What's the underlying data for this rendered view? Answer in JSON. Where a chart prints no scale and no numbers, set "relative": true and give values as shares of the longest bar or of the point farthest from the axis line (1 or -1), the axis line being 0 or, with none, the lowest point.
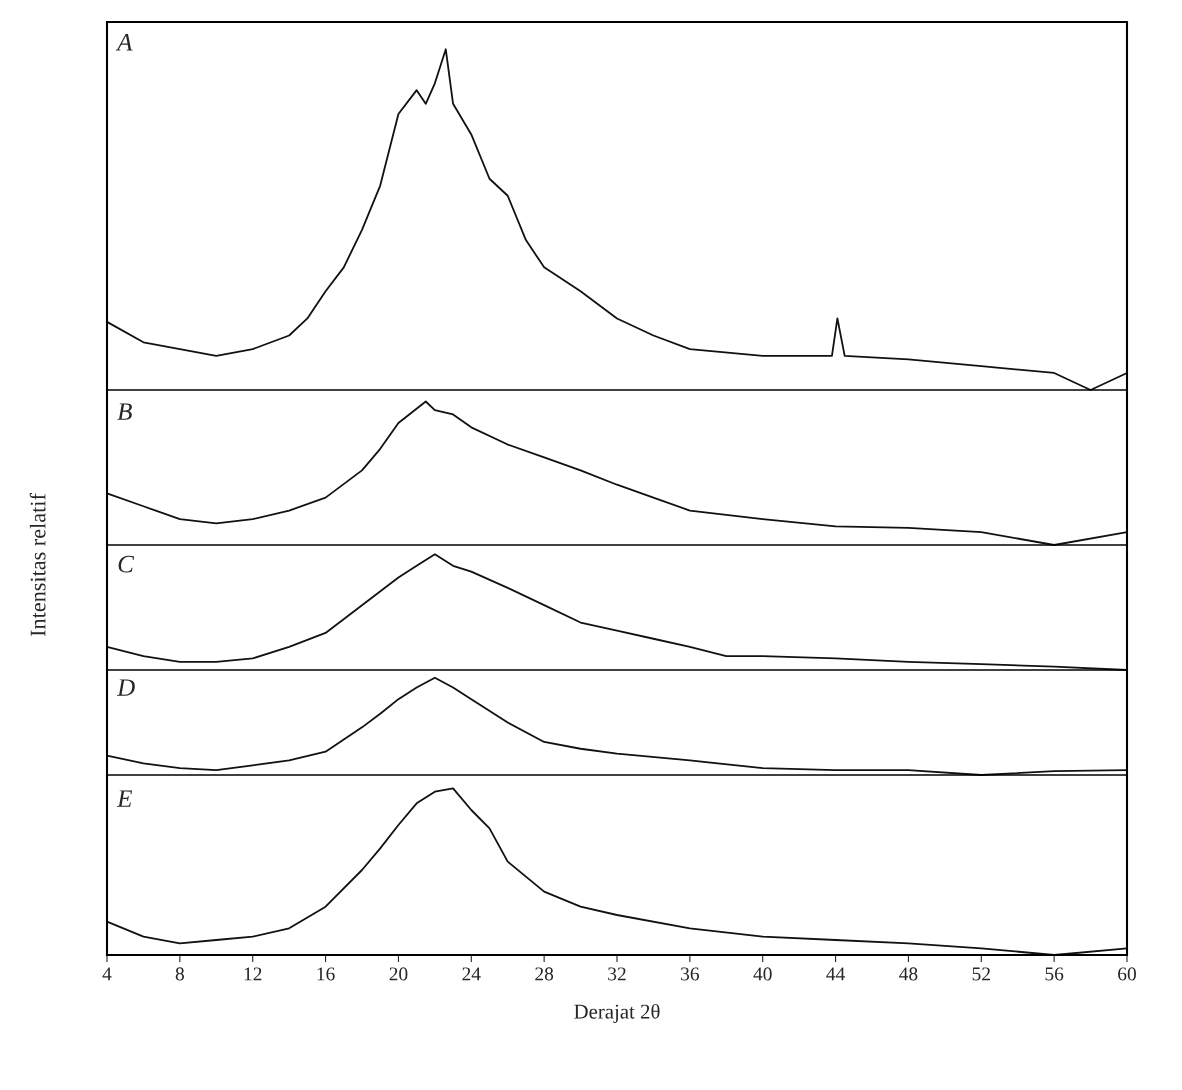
{
  "chart_data": [
    {
      "type": "line",
      "title": "A",
      "relative": true,
      "tick_labels": false,
      "xlim": [
        4,
        60
      ],
      "x": [
        4,
        6,
        8,
        10,
        12,
        14,
        15,
        16,
        17,
        18,
        19,
        20,
        21,
        21.5,
        22,
        22.6,
        23,
        24,
        25,
        26,
        27,
        28,
        30,
        32,
        34,
        36,
        40,
        43.8,
        44.1,
        44.5,
        48,
        52,
        56,
        58,
        60
      ],
      "series": [
        {
          "color": "#111111",
          "values": [
            0.2,
            0.14,
            0.12,
            0.1,
            0.12,
            0.16,
            0.21,
            0.29,
            0.36,
            0.47,
            0.6,
            0.81,
            0.88,
            0.84,
            0.9,
            1.0,
            0.84,
            0.75,
            0.62,
            0.57,
            0.44,
            0.36,
            0.29,
            0.21,
            0.16,
            0.12,
            0.1,
            0.1,
            0.21,
            0.1,
            0.09,
            0.07,
            0.05,
            0.0,
            0.05
          ]
        }
      ]
    },
    {
      "type": "line",
      "title": "B",
      "relative": true,
      "tick_labels": false,
      "xlim": [
        4,
        60
      ],
      "x": [
        4,
        6,
        8,
        10,
        12,
        14,
        16,
        18,
        19,
        20,
        21.5,
        22,
        23,
        24,
        26,
        28,
        30,
        32,
        34,
        36,
        40,
        44,
        48,
        52,
        56,
        60
      ],
      "series": [
        {
          "color": "#111111",
          "values": [
            0.36,
            0.27,
            0.18,
            0.15,
            0.18,
            0.24,
            0.33,
            0.52,
            0.67,
            0.85,
            1.0,
            0.94,
            0.91,
            0.82,
            0.7,
            0.61,
            0.52,
            0.42,
            0.33,
            0.24,
            0.18,
            0.13,
            0.12,
            0.09,
            0.0,
            0.09
          ]
        }
      ]
    },
    {
      "type": "line",
      "title": "C",
      "ylabel": "Intensitas relatif",
      "relative": true,
      "tick_labels": false,
      "xlim": [
        4,
        60
      ],
      "x": [
        4,
        6,
        8,
        10,
        12,
        14,
        16,
        18,
        20,
        21,
        22,
        23,
        24,
        26,
        28,
        30,
        32,
        34,
        36,
        38,
        40,
        44,
        48,
        52,
        56,
        60
      ],
      "series": [
        {
          "color": "#111111",
          "values": [
            0.2,
            0.12,
            0.07,
            0.07,
            0.1,
            0.2,
            0.32,
            0.56,
            0.8,
            0.9,
            1.0,
            0.9,
            0.85,
            0.71,
            0.56,
            0.41,
            0.34,
            0.27,
            0.2,
            0.12,
            0.12,
            0.1,
            0.07,
            0.05,
            0.03,
            0.0
          ]
        }
      ]
    },
    {
      "type": "line",
      "title": "D",
      "relative": true,
      "tick_labels": false,
      "xlim": [
        4,
        60
      ],
      "x": [
        4,
        6,
        8,
        10,
        12,
        14,
        16,
        18,
        19,
        20,
        21,
        22,
        23,
        24,
        26,
        28,
        30,
        32,
        36,
        40,
        44,
        48,
        52,
        56,
        60
      ],
      "series": [
        {
          "color": "#111111",
          "values": [
            0.2,
            0.12,
            0.07,
            0.05,
            0.1,
            0.15,
            0.24,
            0.49,
            0.63,
            0.78,
            0.9,
            1.0,
            0.9,
            0.78,
            0.54,
            0.34,
            0.27,
            0.22,
            0.15,
            0.07,
            0.05,
            0.05,
            0.0,
            0.04,
            0.05
          ]
        }
      ]
    },
    {
      "type": "line",
      "title": "E",
      "xlabel": "Derajat 2θ",
      "relative": true,
      "tick_labels": "x",
      "xlim": [
        4,
        60
      ],
      "xticks": [
        4,
        8,
        12,
        16,
        20,
        24,
        28,
        32,
        36,
        40,
        44,
        48,
        52,
        56,
        60
      ],
      "x": [
        4,
        6,
        8,
        10,
        12,
        14,
        16,
        18,
        19,
        20,
        21,
        22,
        23,
        24,
        25,
        26,
        28,
        30,
        32,
        36,
        40,
        44,
        48,
        52,
        56,
        60
      ],
      "series": [
        {
          "color": "#111111",
          "values": [
            0.2,
            0.11,
            0.07,
            0.09,
            0.11,
            0.16,
            0.29,
            0.51,
            0.64,
            0.78,
            0.91,
            0.98,
            1.0,
            0.87,
            0.76,
            0.56,
            0.38,
            0.29,
            0.24,
            0.16,
            0.11,
            0.09,
            0.07,
            0.04,
            0.0,
            0.04
          ]
        }
      ]
    }
  ]
}
